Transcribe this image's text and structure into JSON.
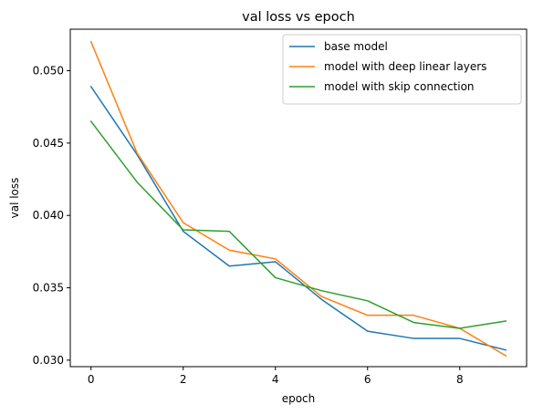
{
  "chart_data": {
    "type": "line",
    "title": "val loss vs epoch",
    "xlabel": "epoch",
    "ylabel": "val loss",
    "xlim": [
      -0.45,
      9.45
    ],
    "ylim": [
      0.02955,
      0.05287
    ],
    "xticks": [
      0,
      2,
      4,
      6,
      8
    ],
    "xtick_labels": [
      "0",
      "2",
      "4",
      "6",
      "8"
    ],
    "yticks": [
      0.03,
      0.035,
      0.04,
      0.045,
      0.05
    ],
    "ytick_labels": [
      "0.030",
      "0.035",
      "0.040",
      "0.045",
      "0.050"
    ],
    "grid": false,
    "legend_position": "top-right",
    "x": [
      0,
      1,
      2,
      3,
      4,
      5,
      6,
      7,
      8,
      9
    ],
    "series": [
      {
        "name": "base model",
        "color": "#1f77b4",
        "values": [
          0.0489,
          0.0442,
          0.0389,
          0.0365,
          0.0368,
          0.0342,
          0.032,
          0.0315,
          0.0315,
          0.0307
        ]
      },
      {
        "name": "model with deep linear layers",
        "color": "#ff7f0e",
        "values": [
          0.052,
          0.0443,
          0.0395,
          0.0376,
          0.037,
          0.0344,
          0.0331,
          0.0331,
          0.0322,
          0.0303
        ]
      },
      {
        "name": "model with skip connection",
        "color": "#2ca02c",
        "values": [
          0.0465,
          0.0423,
          0.039,
          0.0389,
          0.0357,
          0.0348,
          0.0341,
          0.0326,
          0.0322,
          0.0327
        ]
      }
    ]
  }
}
